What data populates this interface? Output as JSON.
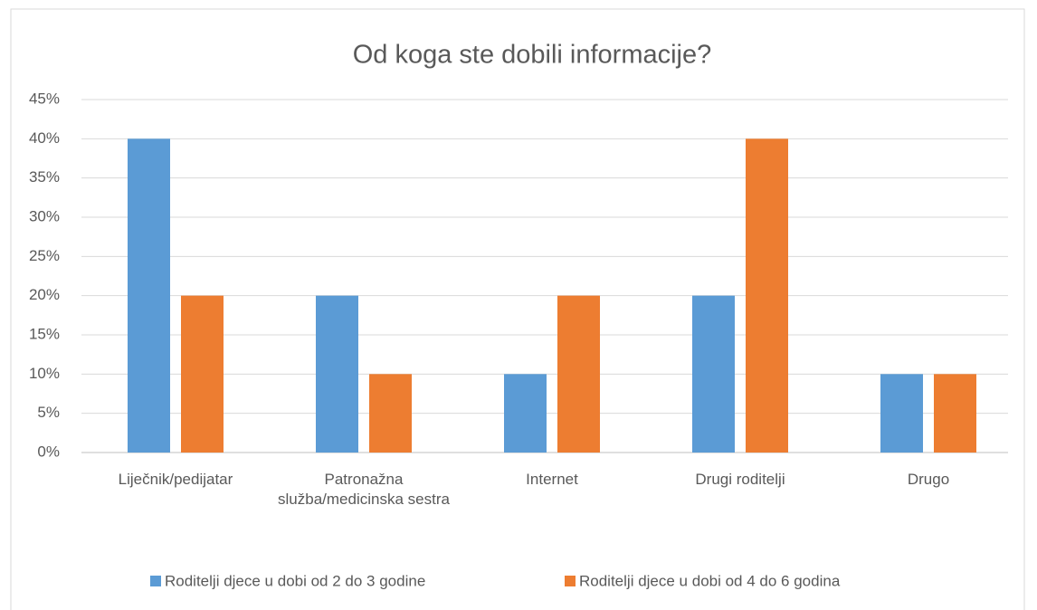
{
  "chart_data": {
    "type": "bar",
    "title": "Od koga ste dobili informacije?",
    "categories": [
      "Liječnik/pedijatar",
      "Patronažna služba/medicinska sestra",
      "Internet",
      "Drugi roditelji",
      "Drugo"
    ],
    "series": [
      {
        "name": "Roditelji djece u dobi od 2 do 3 godine",
        "color": "#5b9bd5",
        "values": [
          40,
          20,
          10,
          20,
          10
        ]
      },
      {
        "name": "Roditelji djece u dobi od 4 do 6 godina",
        "color": "#ed7d31",
        "values": [
          20,
          10,
          20,
          40,
          10
        ]
      }
    ],
    "ylim": [
      0,
      45
    ],
    "yticks": [
      {
        "value": 0,
        "label": "0%"
      },
      {
        "value": 5,
        "label": "5%"
      },
      {
        "value": 10,
        "label": "10%"
      },
      {
        "value": 15,
        "label": "15%"
      },
      {
        "value": 20,
        "label": "20%"
      },
      {
        "value": 25,
        "label": "25%"
      },
      {
        "value": 30,
        "label": "30%"
      },
      {
        "value": 35,
        "label": "35%"
      },
      {
        "value": 40,
        "label": "40%"
      },
      {
        "value": 45,
        "label": "45%"
      }
    ],
    "grid": true,
    "legend": "bottom"
  }
}
